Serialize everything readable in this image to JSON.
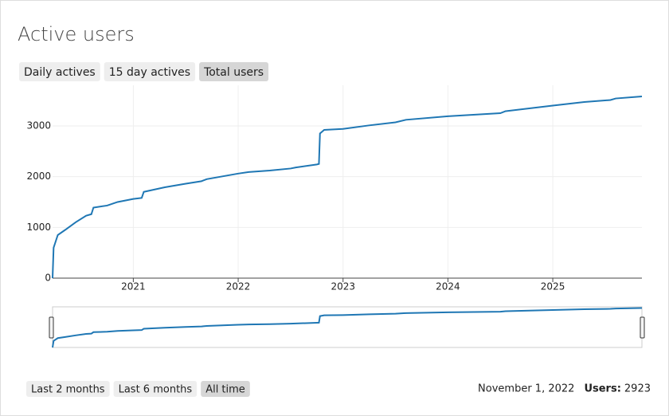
{
  "title": "Active users",
  "tabs": [
    "Daily actives",
    "15 day actives",
    "Total users"
  ],
  "active_tab": 2,
  "chart_data": {
    "type": "line",
    "x": [
      2020.23,
      2020.24,
      2020.28,
      2020.35,
      2020.45,
      2020.55,
      2020.6,
      2020.62,
      2020.75,
      2020.85,
      2021.0,
      2021.08,
      2021.1,
      2021.3,
      2021.5,
      2021.65,
      2021.7,
      2022.0,
      2022.1,
      2022.3,
      2022.5,
      2022.55,
      2022.75,
      2022.77,
      2022.78,
      2022.82,
      2023.0,
      2023.25,
      2023.5,
      2023.6,
      2024.0,
      2024.5,
      2024.55,
      2025.0,
      2025.3,
      2025.55,
      2025.6,
      2025.85
    ],
    "series": [
      {
        "name": "Total users",
        "color": "#1f77b4",
        "values": [
          0,
          600,
          850,
          950,
          1100,
          1230,
          1260,
          1390,
          1430,
          1500,
          1560,
          1580,
          1700,
          1790,
          1860,
          1910,
          1950,
          2060,
          2090,
          2120,
          2160,
          2180,
          2240,
          2250,
          2850,
          2920,
          2940,
          3010,
          3070,
          3120,
          3190,
          3250,
          3290,
          3400,
          3470,
          3510,
          3540,
          3580
        ]
      }
    ],
    "xlim": [
      2020.23,
      2025.85
    ],
    "xticks": [
      2021,
      2022,
      2023,
      2024,
      2025
    ],
    "ylim": [
      0,
      3800
    ],
    "yticks": [
      0,
      1000,
      2000,
      3000
    ],
    "grid": true
  },
  "range_buttons": [
    "Last 2 months",
    "Last 6 months",
    "All time"
  ],
  "active_range": 2,
  "status": {
    "date": "November 1, 2022",
    "users_label": "Users:",
    "users": 2923
  }
}
